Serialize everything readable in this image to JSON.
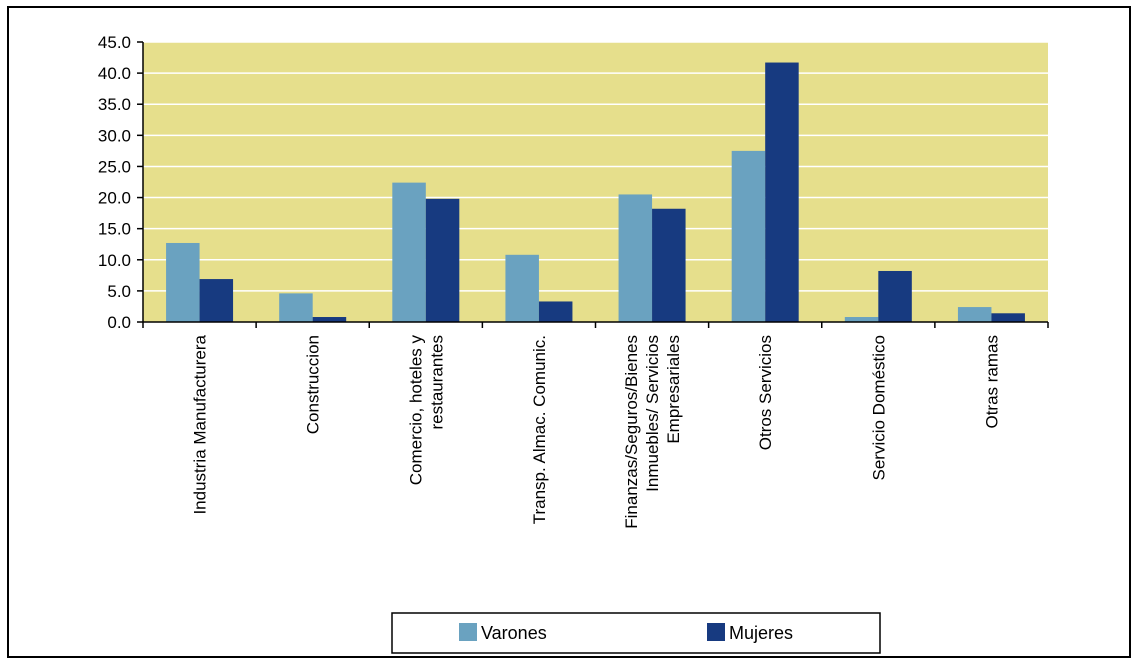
{
  "chart_data": {
    "type": "bar",
    "categories": [
      [
        "Industria Manufacturera"
      ],
      [
        "Construccion"
      ],
      [
        "Comercio, hoteles y",
        "restaurantes"
      ],
      [
        "Transp. Almac. Comunic."
      ],
      [
        "Finanzas/Seguros/Bienes",
        "Inmuebles/ Servicios",
        "Empresariales"
      ],
      [
        "Otros Servicios"
      ],
      [
        "Servicio Doméstico"
      ],
      [
        "Otras ramas"
      ]
    ],
    "series": [
      {
        "name": "Varones",
        "color": "#6aa2c0",
        "values": [
          12.7,
          4.6,
          22.4,
          10.8,
          20.5,
          27.5,
          0.8,
          2.4
        ]
      },
      {
        "name": "Mujeres",
        "color": "#173a80",
        "values": [
          6.9,
          0.8,
          19.8,
          3.3,
          18.2,
          41.7,
          8.2,
          1.4
        ]
      }
    ],
    "ylim": [
      0,
      45
    ],
    "yticks": [
      "0.0",
      "5.0",
      "10.0",
      "15.0",
      "20.0",
      "25.0",
      "30.0",
      "35.0",
      "40.0",
      "45.0"
    ],
    "grid": true,
    "plot_background": "#e6df8c",
    "legend_position": "bottom"
  }
}
